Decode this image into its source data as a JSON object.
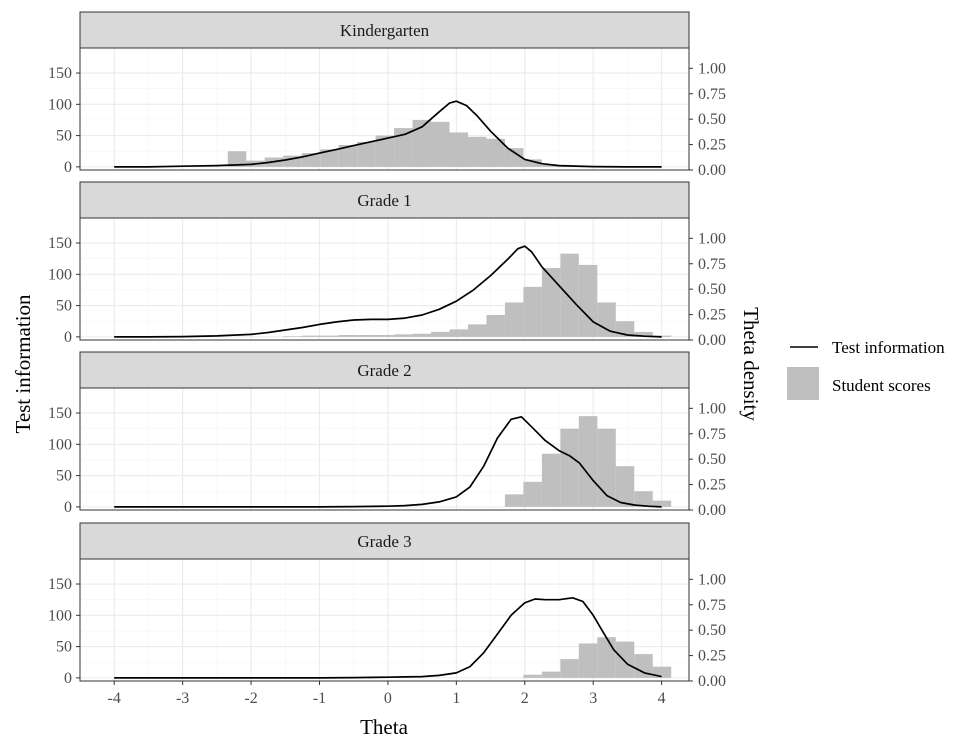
{
  "chart_data": {
    "type": "facet-histogram-line",
    "xlabel": "Theta",
    "ylabel_left": "Test information",
    "ylabel_right": "Theta density",
    "xlim": [
      -4.5,
      4.4
    ],
    "ylim_left": [
      -5,
      190
    ],
    "ylim_right": [
      0,
      1.2
    ],
    "x_ticks": [
      -4,
      -3,
      -2,
      -1,
      0,
      1,
      2,
      3,
      4
    ],
    "x_tick_labels": [
      "-4",
      "-3",
      "-2",
      "-1",
      "0",
      "1",
      "2",
      "3",
      "4"
    ],
    "y_ticks_left": [
      0,
      50,
      100,
      150
    ],
    "y_tick_labels_left": [
      "0",
      "50",
      "100",
      "150"
    ],
    "y_ticks_right": [
      0,
      0.25,
      0.5,
      0.75,
      1.0
    ],
    "y_tick_labels_right": [
      "0.00",
      "0.25",
      "0.50",
      "0.75",
      "1.00"
    ],
    "bin_width": 0.27,
    "bin_start": -2.34,
    "colors": {
      "line": "#000000",
      "bar": "#bfbfbf"
    },
    "legend": [
      {
        "label": "Test information",
        "kind": "line"
      },
      {
        "label": "Student scores",
        "kind": "fill"
      }
    ],
    "panels": [
      {
        "title": "Kindergarten",
        "histogram_values": [
          25,
          10,
          15,
          18,
          22,
          28,
          35,
          40,
          50,
          62,
          75,
          72,
          55,
          48,
          45,
          30,
          12,
          3,
          1,
          0,
          0,
          0,
          0,
          0
        ],
        "line": {
          "x": [
            -4,
            -3.5,
            -3,
            -2.5,
            -2,
            -1.75,
            -1.5,
            -1.25,
            -1,
            -0.75,
            -0.5,
            -0.25,
            0,
            0.25,
            0.5,
            0.75,
            0.9,
            1.0,
            1.15,
            1.3,
            1.5,
            1.75,
            2,
            2.25,
            2.5,
            3,
            3.5,
            4
          ],
          "y": [
            0,
            0,
            1,
            2,
            4,
            7,
            11,
            16,
            22,
            28,
            34,
            40,
            46,
            52,
            64,
            88,
            102,
            105,
            98,
            82,
            57,
            30,
            12,
            5,
            2,
            0.5,
            0,
            0
          ]
        }
      },
      {
        "title": "Grade 1",
        "histogram_values": [
          0,
          0,
          0,
          1,
          2,
          2,
          3,
          3,
          3,
          4,
          5,
          8,
          12,
          20,
          35,
          55,
          80,
          110,
          133,
          115,
          55,
          25,
          8,
          2
        ],
        "line": {
          "x": [
            -4,
            -3.5,
            -3,
            -2.5,
            -2,
            -1.75,
            -1.5,
            -1.25,
            -1,
            -0.75,
            -0.5,
            -0.25,
            0,
            0.25,
            0.5,
            0.75,
            1,
            1.25,
            1.5,
            1.75,
            1.9,
            2.0,
            2.1,
            2.25,
            2.5,
            2.75,
            3,
            3.25,
            3.5,
            3.75,
            4
          ],
          "y": [
            0,
            0,
            0.5,
            1.5,
            4,
            7,
            11,
            15,
            20,
            24,
            27,
            28,
            28,
            30,
            35,
            44,
            57,
            75,
            98,
            124,
            141,
            145,
            136,
            112,
            82,
            52,
            24,
            9,
            3,
            1,
            0
          ]
        }
      },
      {
        "title": "Grade 2",
        "histogram_values": [
          0,
          0,
          0,
          0,
          0,
          0,
          0,
          0,
          0,
          0,
          0,
          0,
          0,
          0,
          0,
          20,
          40,
          85,
          125,
          145,
          125,
          65,
          25,
          10
        ],
        "line": {
          "x": [
            -4,
            -3,
            -2,
            -1,
            -0.5,
            0,
            0.25,
            0.5,
            0.75,
            1,
            1.2,
            1.4,
            1.6,
            1.8,
            1.95,
            2.1,
            2.3,
            2.5,
            2.65,
            2.8,
            3,
            3.2,
            3.4,
            3.6,
            3.8,
            4
          ],
          "y": [
            0,
            0,
            0,
            0,
            0.5,
            1,
            2,
            4,
            8,
            16,
            32,
            65,
            110,
            140,
            144,
            128,
            106,
            90,
            82,
            70,
            42,
            18,
            7,
            3,
            1,
            0
          ]
        }
      },
      {
        "title": "Grade 3",
        "histogram_values": [
          0,
          0,
          0,
          0,
          0,
          0,
          0,
          0,
          0,
          0,
          0,
          0,
          0,
          0,
          0,
          0,
          5,
          10,
          30,
          55,
          65,
          58,
          38,
          18
        ],
        "line": {
          "x": [
            -4,
            -3,
            -2,
            -1,
            -0.5,
            0,
            0.25,
            0.5,
            0.75,
            1,
            1.2,
            1.4,
            1.6,
            1.8,
            2,
            2.15,
            2.3,
            2.5,
            2.7,
            2.85,
            3,
            3.15,
            3.3,
            3.5,
            3.75,
            4
          ],
          "y": [
            0,
            0,
            0,
            0,
            0.5,
            1,
            1.5,
            2,
            4,
            8,
            18,
            40,
            70,
            100,
            120,
            126,
            125,
            125,
            128,
            122,
            100,
            72,
            45,
            22,
            8,
            2
          ]
        }
      }
    ]
  }
}
